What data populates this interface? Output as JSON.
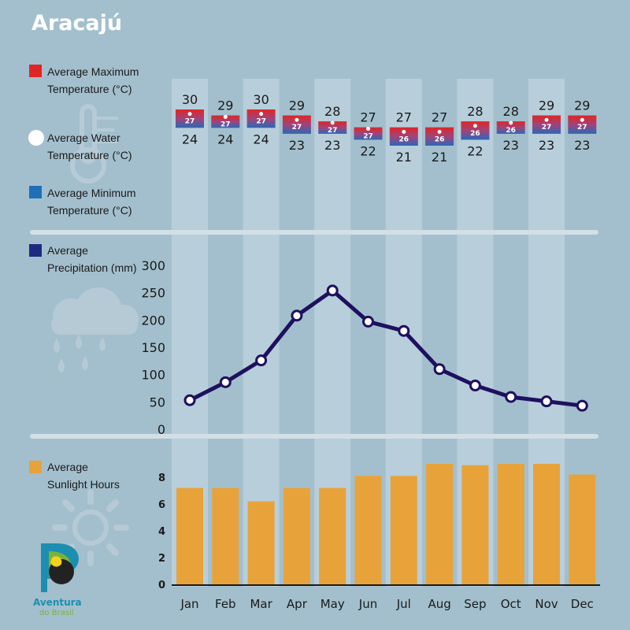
{
  "title": "Aracajú",
  "logo": {
    "line1": "Aventura",
    "line2": "do Brasil"
  },
  "colors": {
    "background": "#a3bfcd",
    "stripe": "#b8cedb",
    "divider": "#d2dfe7",
    "max_temp": "#e02525",
    "min_temp": "#1e6fb8",
    "water": "#ffffff",
    "precip_line": "#1e1060",
    "sunlight": "#e8a23a"
  },
  "legend": {
    "max_temp": [
      "Average Maximum",
      "Temperature (°C)"
    ],
    "water_temp": [
      "Average Water",
      "Temperature (°C)"
    ],
    "min_temp": [
      "Average Minimum",
      "Temperature (°C)"
    ],
    "precipitation": [
      "Average",
      "Precipitation (mm)"
    ],
    "sunlight": [
      "Average",
      "Sunlight Hours"
    ]
  },
  "icons": [
    "thermometer-icon",
    "rain-cloud-icon",
    "sun-icon",
    "aventura-do-brasil-logo"
  ],
  "chart_data": [
    {
      "type": "range-bar",
      "categories": [
        "Jan",
        "Feb",
        "Mar",
        "Apr",
        "May",
        "Jun",
        "Jul",
        "Aug",
        "Sep",
        "Oct",
        "Nov",
        "Dec"
      ],
      "series": [
        {
          "name": "Average Maximum Temperature (°C)",
          "values": [
            30,
            29,
            30,
            29,
            28,
            27,
            27,
            27,
            28,
            28,
            29,
            29
          ]
        },
        {
          "name": "Average Water Temperature (°C)",
          "values": [
            27,
            27,
            27,
            27,
            27,
            27,
            26,
            26,
            26,
            26,
            27,
            27
          ]
        },
        {
          "name": "Average Minimum Temperature (°C)",
          "values": [
            24,
            24,
            24,
            23,
            23,
            22,
            21,
            21,
            22,
            23,
            23,
            23
          ]
        }
      ]
    },
    {
      "type": "line",
      "categories": [
        "Jan",
        "Feb",
        "Mar",
        "Apr",
        "May",
        "Jun",
        "Jul",
        "Aug",
        "Sep",
        "Oct",
        "Nov",
        "Dec"
      ],
      "series": [
        {
          "name": "Average Precipitation (mm)",
          "values": [
            53,
            86,
            126,
            208,
            254,
            197,
            180,
            110,
            80,
            59,
            51,
            43
          ]
        }
      ],
      "yticks": [
        0,
        50,
        100,
        150,
        200,
        250,
        300
      ],
      "ylim": [
        0,
        300
      ]
    },
    {
      "type": "bar",
      "categories": [
        "Jan",
        "Feb",
        "Mar",
        "Apr",
        "May",
        "Jun",
        "Jul",
        "Aug",
        "Sep",
        "Oct",
        "Nov",
        "Dec"
      ],
      "series": [
        {
          "name": "Average Sunlight Hours",
          "values": [
            7.2,
            7.2,
            6.2,
            7.2,
            7.2,
            8.1,
            8.1,
            9.0,
            8.9,
            9.0,
            9.0,
            8.2
          ]
        }
      ],
      "yticks": [
        0,
        2,
        4,
        6,
        8
      ],
      "ylim": [
        0,
        10
      ]
    }
  ]
}
